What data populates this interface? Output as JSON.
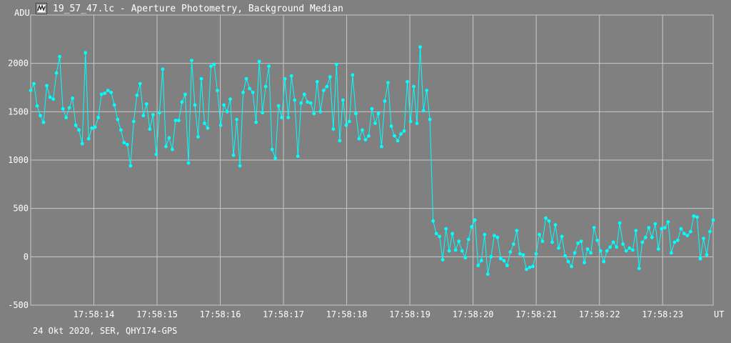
{
  "window": {
    "title": "19_57_47.lc - Aperture Photometry, Background Median",
    "icon": "lightcurve-app-icon"
  },
  "footer": {
    "info": "24 Okt 2020, SER, QHY174-GPS"
  },
  "colors": {
    "background": "#808080",
    "grid": "#c8c8c8",
    "series": "#00ffff",
    "text": "#ffffff"
  },
  "chart_data": {
    "type": "line",
    "title": "",
    "xlabel": "UT",
    "ylabel": "ADU",
    "ylim": [
      -500,
      2500
    ],
    "xlim": [
      "17:58:13.0",
      "17:58:23.8"
    ],
    "yticks": [
      -500,
      0,
      500,
      1000,
      1500,
      2000
    ],
    "xticks": [
      "17:58:14",
      "17:58:15",
      "17:58:16",
      "17:58:17",
      "17:58:18",
      "17:58:19",
      "17:58:20",
      "17:58:21",
      "17:58:22",
      "17:58:23"
    ],
    "grid": true,
    "series": [
      {
        "x_start": "17:58:13.0",
        "x_end": "17:58:23.8",
        "values": [
          1720,
          1790,
          1560,
          1460,
          1390,
          1770,
          1650,
          1630,
          1900,
          2070,
          1530,
          1440,
          1540,
          1640,
          1360,
          1310,
          1170,
          2110,
          1220,
          1330,
          1340,
          1440,
          1680,
          1690,
          1720,
          1700,
          1570,
          1420,
          1310,
          1180,
          1160,
          940,
          1400,
          1670,
          1790,
          1460,
          1580,
          1320,
          1470,
          1060,
          1490,
          1940,
          1140,
          1230,
          1110,
          1410,
          1410,
          1600,
          1680,
          970,
          2030,
          1570,
          1240,
          1840,
          1380,
          1330,
          1970,
          1990,
          1720,
          1360,
          1570,
          1500,
          1630,
          1050,
          1420,
          940,
          1700,
          1840,
          1740,
          1700,
          1390,
          2020,
          1490,
          1760,
          1970,
          1110,
          1020,
          1560,
          1440,
          1840,
          1440,
          1870,
          1620,
          1040,
          1590,
          1680,
          1600,
          1590,
          1480,
          1810,
          1500,
          1720,
          1760,
          1860,
          1320,
          1990,
          1200,
          1620,
          1360,
          1400,
          1880,
          1480,
          1220,
          1310,
          1210,
          1250,
          1530,
          1380,
          1480,
          1140,
          1610,
          1800,
          1350,
          1250,
          1200,
          1270,
          1300,
          1810,
          1400,
          1760,
          1380,
          2170,
          1510,
          1720,
          1420,
          370,
          240,
          210,
          -30,
          290,
          60,
          240,
          70,
          160,
          60,
          -10,
          180,
          310,
          380,
          -90,
          -40,
          230,
          -180,
          0,
          220,
          200,
          -20,
          -40,
          -90,
          50,
          130,
          270,
          30,
          20,
          -130,
          -110,
          -100,
          30,
          230,
          160,
          400,
          370,
          150,
          330,
          90,
          210,
          10,
          -50,
          -100,
          40,
          140,
          160,
          -60,
          80,
          40,
          300,
          170,
          60,
          -50,
          60,
          100,
          150,
          100,
          350,
          130,
          60,
          90,
          70,
          270,
          -120,
          150,
          200,
          300,
          200,
          340,
          80,
          290,
          300,
          360,
          40,
          150,
          170,
          290,
          240,
          220,
          260,
          420,
          410,
          -20,
          190,
          20,
          260,
          380
        ]
      }
    ]
  }
}
